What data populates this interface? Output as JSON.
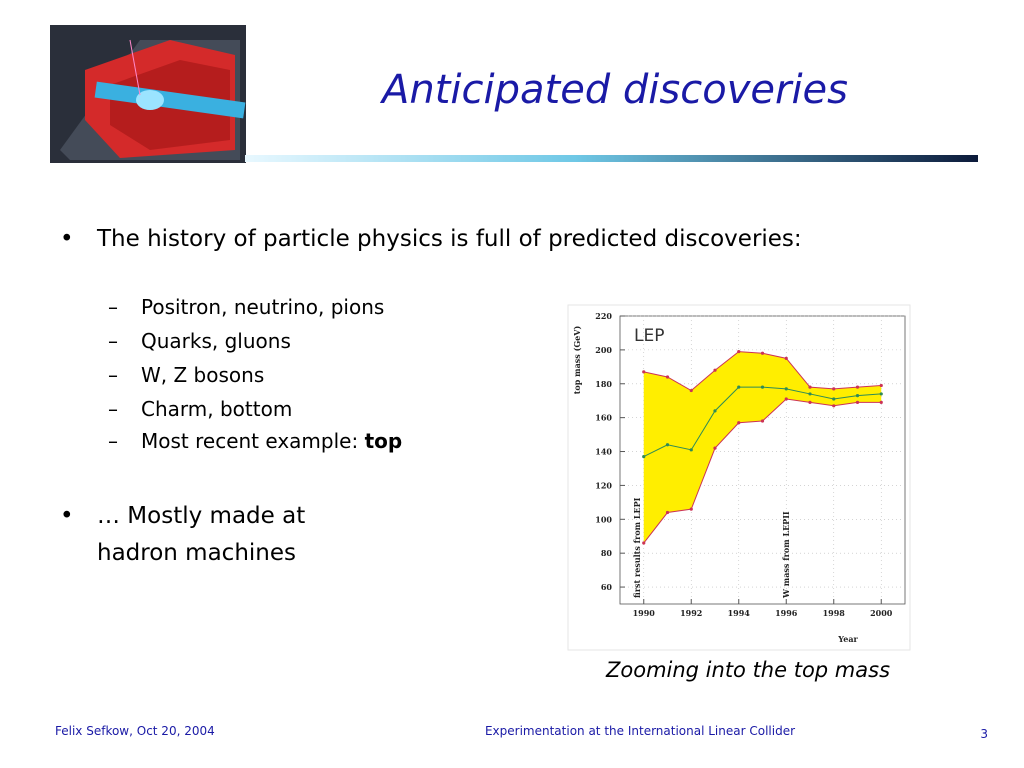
{
  "slide": {
    "title": "Anticipated discoveries",
    "bullets": [
      "The history of particle physics is full of predicted discoveries:"
    ],
    "sub_bullets": [
      "Positron, neutrino, pions",
      "Quarks, gluons",
      "W, Z bosons",
      "Charm, bottom"
    ],
    "last_sub_bullet": {
      "text": "Most recent example:",
      "bold": "top"
    },
    "bullet2_lines": [
      "… Mostly made at",
      "hadron machines"
    ],
    "caption": "Zooming into the top mass",
    "footer": {
      "left": "Felix Sefkow, Oct 20, 2004",
      "center": "Experimentation at the International Linear Collider",
      "page": "3"
    }
  },
  "chart_data": {
    "type": "band-line",
    "label": "LEP",
    "y_label": "top mass (GeV)",
    "x_label": "Year",
    "annotations": [
      "first results from LEPI",
      "W mass from LEPII"
    ],
    "x": [
      1990,
      1991,
      1992,
      1993,
      1994,
      1995,
      1996,
      1997,
      1998,
      1999,
      2000
    ],
    "values": [
      137,
      144,
      141,
      164,
      178,
      178,
      177,
      174,
      171,
      173,
      174
    ],
    "band_upper": [
      187,
      184,
      176,
      188,
      199,
      198,
      195,
      178,
      177,
      178,
      179
    ],
    "band_lower": [
      86,
      104,
      106,
      142,
      157,
      158,
      171,
      169,
      167,
      169,
      169
    ],
    "color": "#2e8b57",
    "band_color": "#ffee00",
    "edge_color": "#cc3355",
    "xlim": [
      1989,
      2001
    ],
    "ylim": [
      50,
      220
    ],
    "xticks": [
      1990,
      1992,
      1994,
      1996,
      1998,
      2000
    ],
    "yticks": [
      60,
      80,
      100,
      120,
      140,
      160,
      180,
      200,
      220
    ],
    "grid": true
  }
}
